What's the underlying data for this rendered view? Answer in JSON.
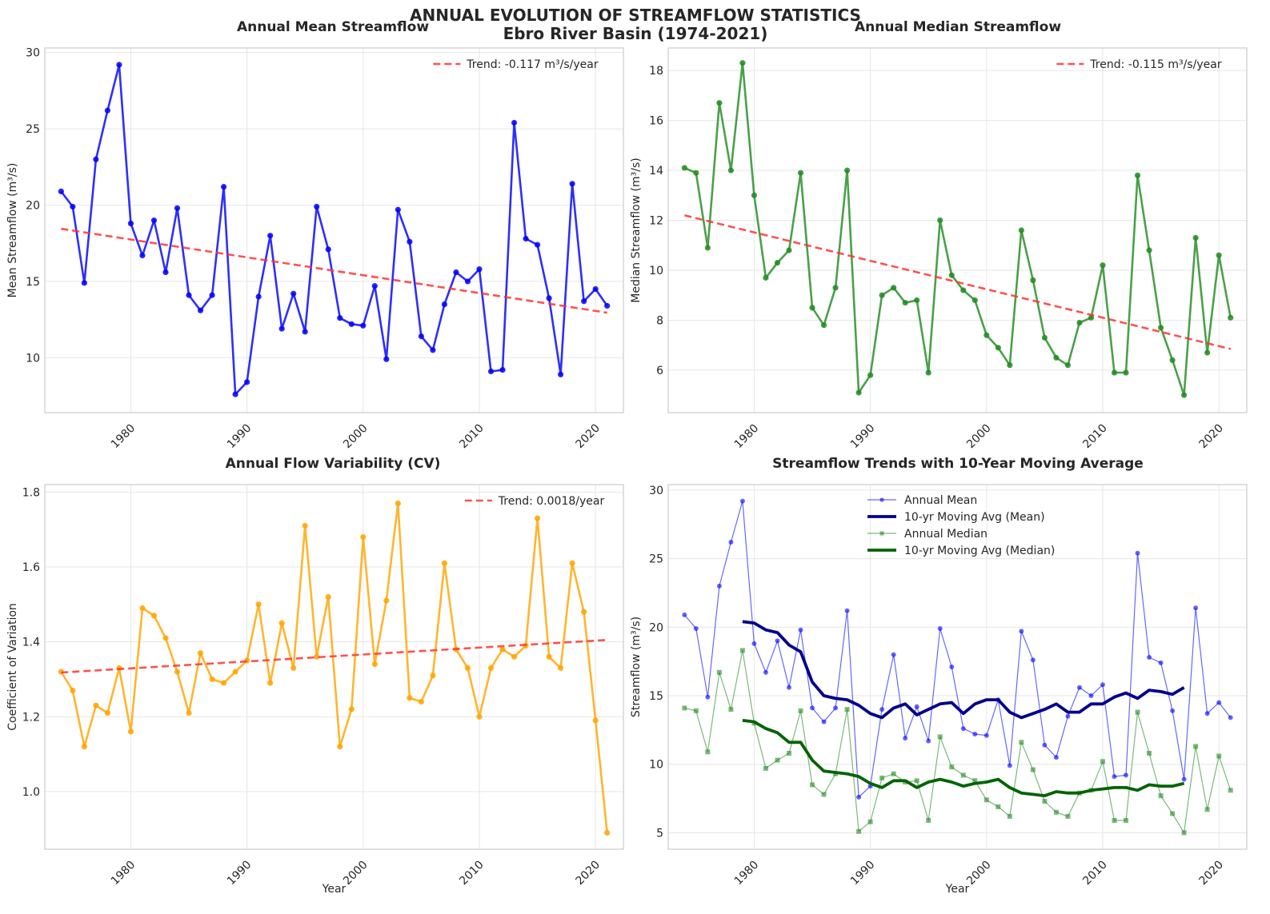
{
  "figure": {
    "suptitle_line1": "ANNUAL EVOLUTION OF STREAMFLOW STATISTICS",
    "suptitle_line2": "Ebro River Basin (1974-2021)"
  },
  "colors": {
    "mean": "#0000ff",
    "median": "#228B22",
    "cv": "#FFA500",
    "trend": "#ff3333",
    "ma_mean": "#00008B",
    "ma_median": "#006400",
    "grid": "#e6e6e6",
    "spine": "#cccccc"
  },
  "chart_data": [
    {
      "id": "mean",
      "type": "line",
      "title": "Annual Mean Streamflow",
      "xlabel": "",
      "ylabel": "Mean Streamflow (m³/s)",
      "xlim": [
        1972.6,
        2022.4
      ],
      "ylim": [
        6.4,
        30.3
      ],
      "xticks": [
        1980,
        1990,
        2000,
        2010,
        2020
      ],
      "yticks": [
        10,
        15,
        20,
        25,
        30
      ],
      "grid": true,
      "legend_position": "top-right",
      "x": [
        1974,
        1975,
        1976,
        1977,
        1978,
        1979,
        1980,
        1981,
        1982,
        1983,
        1984,
        1985,
        1986,
        1987,
        1988,
        1989,
        1990,
        1991,
        1992,
        1993,
        1994,
        1995,
        1996,
        1997,
        1998,
        1999,
        2000,
        2001,
        2002,
        2003,
        2004,
        2005,
        2006,
        2007,
        2008,
        2009,
        2010,
        2011,
        2012,
        2013,
        2014,
        2015,
        2016,
        2017,
        2018,
        2019,
        2020,
        2021
      ],
      "series": [
        {
          "values": [
            20.9,
            19.9,
            14.9,
            23.0,
            26.2,
            29.2,
            18.8,
            16.7,
            19.0,
            15.6,
            19.8,
            14.1,
            13.1,
            14.1,
            21.2,
            7.6,
            8.4,
            14.0,
            18.0,
            11.9,
            14.2,
            11.7,
            19.9,
            17.1,
            12.6,
            12.2,
            12.1,
            14.7,
            9.9,
            19.7,
            17.6,
            11.4,
            10.5,
            13.5,
            15.6,
            15.0,
            15.8,
            9.1,
            9.2,
            25.4,
            17.8,
            17.4,
            13.9,
            8.9,
            21.4,
            13.7,
            14.5,
            13.4
          ]
        }
      ],
      "trend": {
        "label": "Trend: -0.117 m³/s/year",
        "start": 18.45,
        "end": 12.95
      }
    },
    {
      "id": "median",
      "type": "line",
      "title": "Annual Median Streamflow",
      "xlabel": "",
      "ylabel": "Median Streamflow (m³/s)",
      "xlim": [
        1972.6,
        2022.4
      ],
      "ylim": [
        4.3,
        18.9
      ],
      "xticks": [
        1980,
        1990,
        2000,
        2010,
        2020
      ],
      "yticks": [
        6,
        8,
        10,
        12,
        14,
        16,
        18
      ],
      "grid": true,
      "legend_position": "top-right",
      "x": [
        1974,
        1975,
        1976,
        1977,
        1978,
        1979,
        1980,
        1981,
        1982,
        1983,
        1984,
        1985,
        1986,
        1987,
        1988,
        1989,
        1990,
        1991,
        1992,
        1993,
        1994,
        1995,
        1996,
        1997,
        1998,
        1999,
        2000,
        2001,
        2002,
        2003,
        2004,
        2005,
        2006,
        2007,
        2008,
        2009,
        2010,
        2011,
        2012,
        2013,
        2014,
        2015,
        2016,
        2017,
        2018,
        2019,
        2020,
        2021
      ],
      "series": [
        {
          "values": [
            14.1,
            13.9,
            10.9,
            16.7,
            14.0,
            18.3,
            13.0,
            9.7,
            10.3,
            10.8,
            13.9,
            8.5,
            7.8,
            9.3,
            14.0,
            5.1,
            5.8,
            9.0,
            9.3,
            8.7,
            8.8,
            5.9,
            12.0,
            9.8,
            9.2,
            8.8,
            7.4,
            6.9,
            6.2,
            11.6,
            9.6,
            7.3,
            6.5,
            6.2,
            7.9,
            8.1,
            10.2,
            5.9,
            5.9,
            13.8,
            10.8,
            7.7,
            6.4,
            5.0,
            11.3,
            6.7,
            10.6,
            8.1
          ]
        }
      ],
      "trend": {
        "label": "Trend: -0.115 m³/s/year",
        "start": 12.2,
        "end": 6.85
      }
    },
    {
      "id": "cv",
      "type": "line",
      "title": "Annual Flow Variability (CV)",
      "xlabel": "Year",
      "ylabel": "Coefficient of Variation",
      "xlim": [
        1972.6,
        2022.4
      ],
      "ylim": [
        0.846,
        1.82
      ],
      "xticks": [
        1980,
        1990,
        2000,
        2010,
        2020
      ],
      "yticks": [
        1.0,
        1.2,
        1.4,
        1.6,
        1.8
      ],
      "grid": true,
      "legend_position": "top-right",
      "x": [
        1974,
        1975,
        1976,
        1977,
        1978,
        1979,
        1980,
        1981,
        1982,
        1983,
        1984,
        1985,
        1986,
        1987,
        1988,
        1989,
        1990,
        1991,
        1992,
        1993,
        1994,
        1995,
        1996,
        1997,
        1998,
        1999,
        2000,
        2001,
        2002,
        2003,
        2004,
        2005,
        2006,
        2007,
        2008,
        2009,
        2010,
        2011,
        2012,
        2013,
        2014,
        2015,
        2016,
        2017,
        2018,
        2019,
        2020,
        2021
      ],
      "series": [
        {
          "values": [
            1.32,
            1.27,
            1.12,
            1.23,
            1.21,
            1.33,
            1.16,
            1.49,
            1.47,
            1.41,
            1.32,
            1.21,
            1.37,
            1.3,
            1.29,
            1.32,
            1.35,
            1.5,
            1.29,
            1.45,
            1.33,
            1.71,
            1.36,
            1.52,
            1.12,
            1.22,
            1.68,
            1.34,
            1.51,
            1.77,
            1.25,
            1.24,
            1.31,
            1.61,
            1.38,
            1.33,
            1.2,
            1.33,
            1.38,
            1.36,
            1.39,
            1.73,
            1.36,
            1.33,
            1.61,
            1.48,
            1.19,
            0.89
          ]
        }
      ],
      "trend": {
        "label": "Trend: 0.0018/year",
        "start": 1.318,
        "end": 1.405
      }
    },
    {
      "id": "trends",
      "type": "line",
      "title": "Streamflow Trends with 10-Year Moving Average",
      "xlabel": "Year",
      "ylabel": "Streamflow (m³/s)",
      "xlim": [
        1972.6,
        2022.4
      ],
      "ylim": [
        3.8,
        30.4
      ],
      "xticks": [
        1980,
        1990,
        2000,
        2010,
        2020
      ],
      "yticks": [
        5,
        10,
        15,
        20,
        25,
        30
      ],
      "grid": true,
      "legend_position": "top-center",
      "x": [
        1974,
        1975,
        1976,
        1977,
        1978,
        1979,
        1980,
        1981,
        1982,
        1983,
        1984,
        1985,
        1986,
        1987,
        1988,
        1989,
        1990,
        1991,
        1992,
        1993,
        1994,
        1995,
        1996,
        1997,
        1998,
        1999,
        2000,
        2001,
        2002,
        2003,
        2004,
        2005,
        2006,
        2007,
        2008,
        2009,
        2010,
        2011,
        2012,
        2013,
        2014,
        2015,
        2016,
        2017,
        2018,
        2019,
        2020,
        2021
      ],
      "series": [
        {
          "name": "Annual Mean",
          "values": [
            20.9,
            19.9,
            14.9,
            23.0,
            26.2,
            29.2,
            18.8,
            16.7,
            19.0,
            15.6,
            19.8,
            14.1,
            13.1,
            14.1,
            21.2,
            7.6,
            8.4,
            14.0,
            18.0,
            11.9,
            14.2,
            11.7,
            19.9,
            17.1,
            12.6,
            12.2,
            12.1,
            14.7,
            9.9,
            19.7,
            17.6,
            11.4,
            10.5,
            13.5,
            15.6,
            15.0,
            15.8,
            9.1,
            9.2,
            25.4,
            17.8,
            17.4,
            13.9,
            8.9,
            21.4,
            13.7,
            14.5,
            13.4
          ]
        },
        {
          "name": "10-yr Moving Avg (Mean)",
          "x": [
            1979,
            1980,
            1981,
            1982,
            1983,
            1984,
            1985,
            1986,
            1987,
            1988,
            1989,
            1990,
            1991,
            1992,
            1993,
            1994,
            1995,
            1996,
            1997,
            1998,
            1999,
            2000,
            2001,
            2002,
            2003,
            2004,
            2005,
            2006,
            2007,
            2008,
            2009,
            2010,
            2011,
            2012,
            2013,
            2014,
            2015,
            2016,
            2017
          ],
          "values": [
            20.4,
            20.3,
            19.8,
            19.6,
            18.7,
            18.2,
            16.0,
            15.0,
            14.8,
            14.7,
            14.3,
            13.7,
            13.4,
            14.1,
            14.4,
            13.6,
            14.0,
            14.4,
            14.5,
            13.7,
            14.4,
            14.7,
            14.7,
            13.8,
            13.4,
            13.7,
            14.0,
            14.4,
            13.8,
            13.8,
            14.4,
            14.4,
            14.9,
            15.2,
            14.8,
            15.4,
            15.3,
            15.1,
            15.6
          ]
        },
        {
          "name": "Annual Median",
          "values": [
            14.1,
            13.9,
            10.9,
            16.7,
            14.0,
            18.3,
            13.0,
            9.7,
            10.3,
            10.8,
            13.9,
            8.5,
            7.8,
            9.3,
            14.0,
            5.1,
            5.8,
            9.0,
            9.3,
            8.7,
            8.8,
            5.9,
            12.0,
            9.8,
            9.2,
            8.8,
            7.4,
            6.9,
            6.2,
            11.6,
            9.6,
            7.3,
            6.5,
            6.2,
            7.9,
            8.1,
            10.2,
            5.9,
            5.9,
            13.8,
            10.8,
            7.7,
            6.4,
            5.0,
            11.3,
            6.7,
            10.6,
            8.1
          ]
        },
        {
          "name": "10-yr Moving Avg (Median)",
          "x": [
            1979,
            1980,
            1981,
            1982,
            1983,
            1984,
            1985,
            1986,
            1987,
            1988,
            1989,
            1990,
            1991,
            1992,
            1993,
            1994,
            1995,
            1996,
            1997,
            1998,
            1999,
            2000,
            2001,
            2002,
            2003,
            2004,
            2005,
            2006,
            2007,
            2008,
            2009,
            2010,
            2011,
            2012,
            2013,
            2014,
            2015,
            2016,
            2017
          ],
          "values": [
            13.2,
            13.1,
            12.6,
            12.3,
            11.6,
            11.6,
            10.3,
            9.5,
            9.4,
            9.3,
            9.1,
            8.6,
            8.3,
            8.8,
            8.8,
            8.3,
            8.7,
            8.9,
            8.7,
            8.4,
            8.6,
            8.7,
            8.9,
            8.3,
            7.9,
            7.8,
            7.7,
            8.0,
            7.9,
            7.9,
            8.1,
            8.2,
            8.3,
            8.3,
            8.1,
            8.5,
            8.4,
            8.4,
            8.6
          ]
        }
      ]
    }
  ]
}
